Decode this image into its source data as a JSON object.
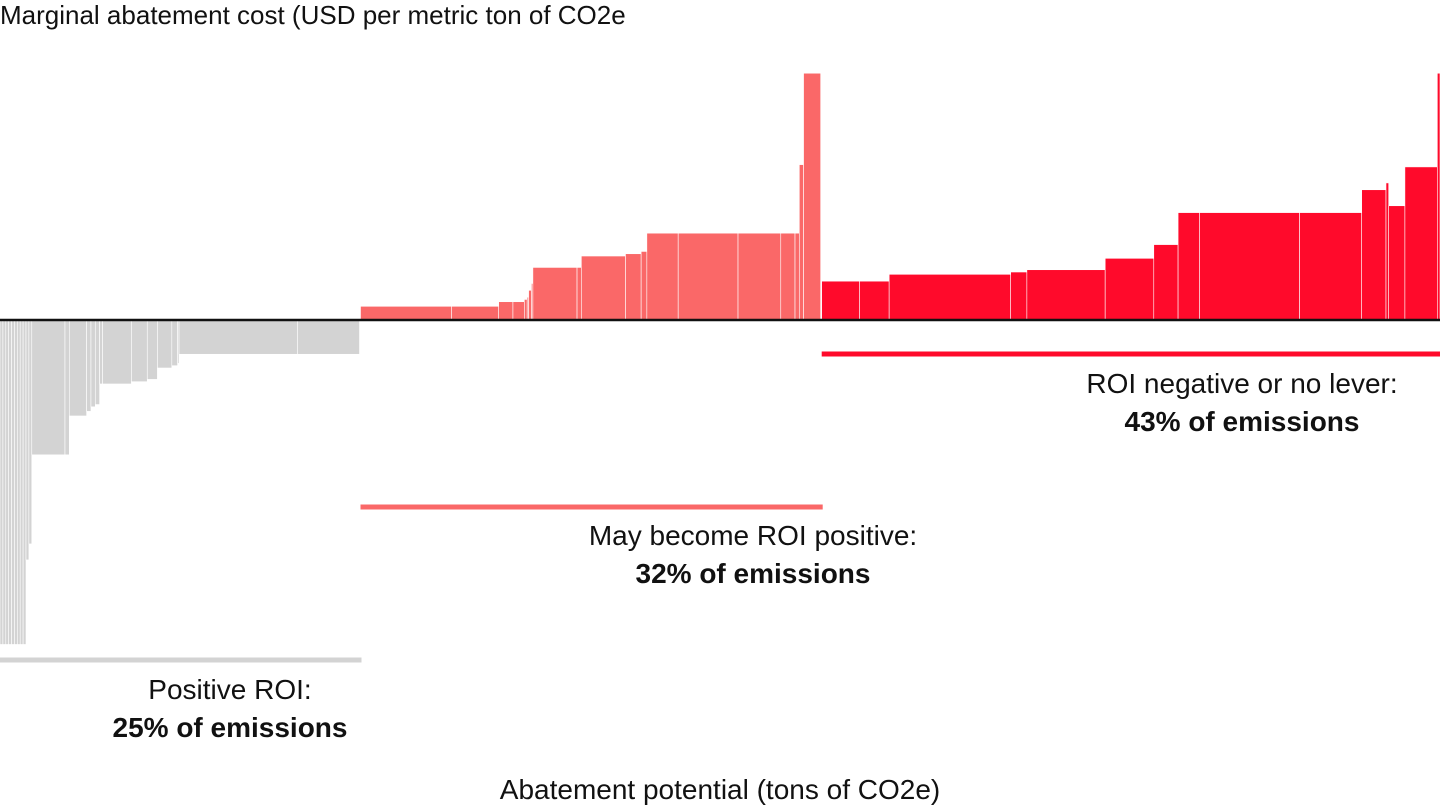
{
  "chart_data": {
    "type": "bar",
    "subtype": "marginal-abatement-cost-curve",
    "ylabel": "Marginal abatement cost (USD per metric ton of CO2e",
    "xlabel": "Abatement potential (tons of CO2e)",
    "x_unit": "percent of emissions (cumulative)",
    "grid": false,
    "legend": "none",
    "segments": [
      {
        "key": "positive",
        "label": "Positive ROI:",
        "pct_label": "25% of emissions",
        "share": 25,
        "color": "#d3d3d3",
        "bars": [
          {
            "w": 0.2,
            "v": -14.2
          },
          {
            "w": 0.2,
            "v": -14.2
          },
          {
            "w": 0.2,
            "v": -14.2
          },
          {
            "w": 0.2,
            "v": -14.2
          },
          {
            "w": 0.2,
            "v": -14.2
          },
          {
            "w": 0.2,
            "v": -14.2
          },
          {
            "w": 0.2,
            "v": -14.2
          },
          {
            "w": 0.2,
            "v": -14.2
          },
          {
            "w": 0.2,
            "v": -14.2
          },
          {
            "w": 0.2,
            "v": -10.5
          },
          {
            "w": 0.2,
            "v": -9.8
          },
          {
            "w": 2.3,
            "v": -5.9
          },
          {
            "w": 0.3,
            "v": -5.9
          },
          {
            "w": 1.2,
            "v": -4.2
          },
          {
            "w": 0.3,
            "v": -4.0
          },
          {
            "w": 0.3,
            "v": -3.8
          },
          {
            "w": 0.3,
            "v": -3.7
          },
          {
            "w": 0.2,
            "v": -2.8
          },
          {
            "w": 2.0,
            "v": -2.8
          },
          {
            "w": 1.1,
            "v": -2.7
          },
          {
            "w": 0.7,
            "v": -2.6
          },
          {
            "w": 1.0,
            "v": -2.1
          },
          {
            "w": 0.4,
            "v": -2.0
          },
          {
            "w": 0.1,
            "v": -1.9
          },
          {
            "w": 8.2,
            "v": -1.5
          },
          {
            "w": 4.3,
            "v": -1.5
          }
        ]
      },
      {
        "key": "may",
        "label": "May become ROI positive:",
        "pct_label": "32% of emissions",
        "share": 32,
        "color": "#fa6868",
        "bars": [
          {
            "w": 6.4,
            "v": 0.6
          },
          {
            "w": 3.3,
            "v": 0.6
          },
          {
            "w": 1.0,
            "v": 0.8
          },
          {
            "w": 0.8,
            "v": 0.8
          },
          {
            "w": 0.2,
            "v": 0.9
          },
          {
            "w": 0.1,
            "v": 1.0
          },
          {
            "w": 0.2,
            "v": 1.3
          },
          {
            "w": 0.1,
            "v": 1.6
          },
          {
            "w": 3.1,
            "v": 2.3
          },
          {
            "w": 0.3,
            "v": 2.3
          },
          {
            "w": 3.1,
            "v": 2.8
          },
          {
            "w": 1.1,
            "v": 2.9
          },
          {
            "w": 0.4,
            "v": 3.0
          },
          {
            "w": 2.2,
            "v": 3.8
          },
          {
            "w": 4.2,
            "v": 3.8
          },
          {
            "w": 3.0,
            "v": 3.8
          },
          {
            "w": 1.0,
            "v": 3.8
          },
          {
            "w": 0.3,
            "v": 3.8
          },
          {
            "w": 0.3,
            "v": 6.8
          },
          {
            "w": 1.2,
            "v": 10.8
          }
        ]
      },
      {
        "key": "neg",
        "label": "ROI negative or no lever:",
        "pct_label": "43% of emissions",
        "share": 43,
        "color": "#ff0a2b",
        "bars": [
          {
            "w": 1.4,
            "v": 1.7
          },
          {
            "w": 1.1,
            "v": 1.7
          },
          {
            "w": 4.5,
            "v": 2.0
          },
          {
            "w": 0.6,
            "v": 2.1
          },
          {
            "w": 2.9,
            "v": 2.2
          },
          {
            "w": 1.8,
            "v": 2.7
          },
          {
            "w": 0.9,
            "v": 3.3
          },
          {
            "w": 0.8,
            "v": 4.7
          },
          {
            "w": 3.7,
            "v": 4.7
          },
          {
            "w": 2.3,
            "v": 4.7
          },
          {
            "w": 0.9,
            "v": 5.7
          },
          {
            "w": 0.1,
            "v": 6.0
          },
          {
            "w": 0.6,
            "v": 5.0
          },
          {
            "w": 1.2,
            "v": 6.7
          },
          {
            "w": 0.1,
            "v": 10.8
          }
        ]
      }
    ]
  }
}
